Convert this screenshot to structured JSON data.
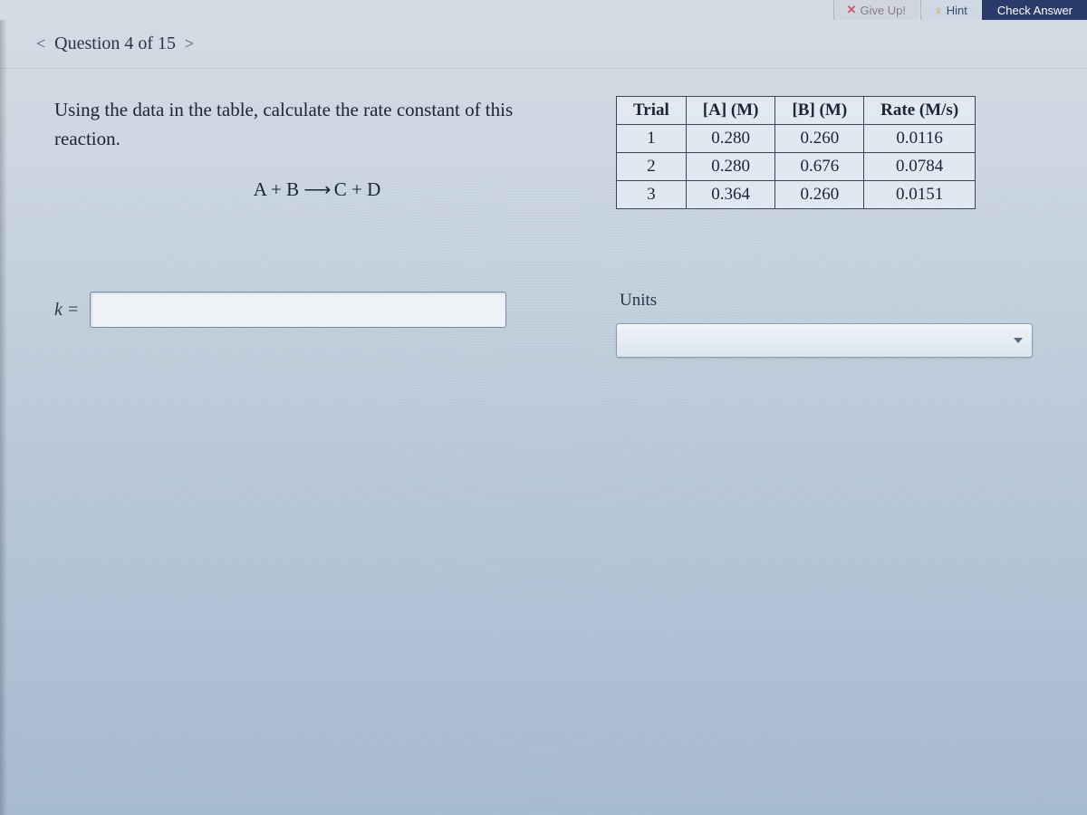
{
  "toolbar": {
    "giveup_label": "Give Up!",
    "hint_label": "Hint",
    "check_label": "Check Answer"
  },
  "question_nav": {
    "label": "Question 4 of 15"
  },
  "prompt": {
    "text": "Using the data in the table, calculate the rate constant of this reaction."
  },
  "equation": {
    "lhs": "A + B",
    "rhs": "C + D"
  },
  "answer": {
    "label": "k =",
    "value": ""
  },
  "table": {
    "headers": [
      "Trial",
      "[A] (M)",
      "[B] (M)",
      "Rate (M/s)"
    ],
    "rows": [
      [
        "1",
        "0.280",
        "0.260",
        "0.0116"
      ],
      [
        "2",
        "0.280",
        "0.676",
        "0.0784"
      ],
      [
        "3",
        "0.364",
        "0.260",
        "0.0151"
      ]
    ],
    "border_color": "#3a4555",
    "bg_color": "rgba(235,240,248,0.7)",
    "fontsize": 19
  },
  "units": {
    "label": "Units",
    "selected": ""
  },
  "colors": {
    "page_bg_top": "#d4dce4",
    "page_bg_bottom": "#a8bcd0",
    "text_primary": "#1a2535",
    "check_btn_bg": "#2a3a6a",
    "check_btn_fg": "#ffffff",
    "hint_icon": "#d4a030",
    "giveup_x": "#c56"
  }
}
